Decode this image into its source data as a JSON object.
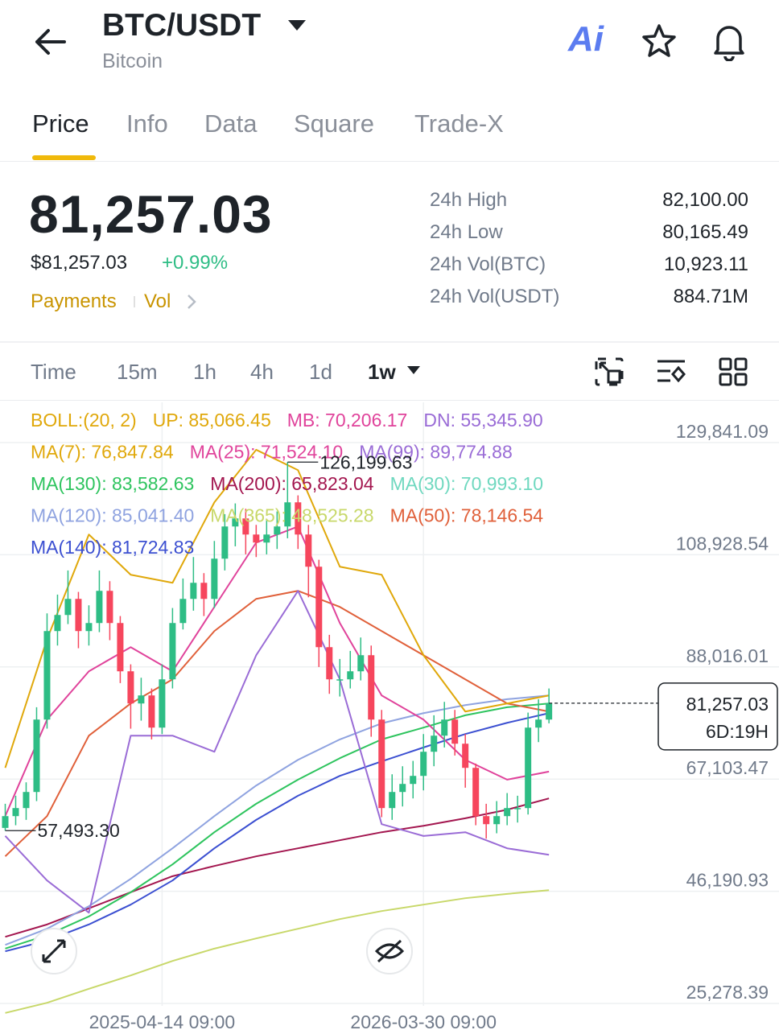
{
  "header": {
    "title": "BTC/USDT",
    "subtitle": "Bitcoin",
    "ai": "Ai"
  },
  "tabs": [
    "Price",
    "Info",
    "Data",
    "Square",
    "Trade-X"
  ],
  "price": {
    "last": "81,257.03",
    "usd": "$81,257.03",
    "change": "+0.99%",
    "links": [
      "Payments",
      "Vol"
    ]
  },
  "stats": [
    [
      "24h High",
      "82,100.00"
    ],
    [
      "24h Low",
      "80,165.49"
    ],
    [
      "24h Vol(BTC)",
      "10,923.11"
    ],
    [
      "24h Vol(USDT)",
      "884.71M"
    ]
  ],
  "timeframes": [
    "Time",
    "15m",
    "1h",
    "4h",
    "1d",
    "1w"
  ],
  "chart_data": {
    "type": "candlestick",
    "indicators": [
      [
        {
          "text": "BOLL:(20, 2)",
          "color": "#e0a80b"
        },
        {
          "text": "UP: 85,066.45",
          "color": "#e0a80b"
        },
        {
          "text": "MB: 70,206.17",
          "color": "#e0439b"
        },
        {
          "text": "DN: 55,345.90",
          "color": "#9a6cd6"
        }
      ],
      [
        {
          "text": "MA(7): 76,847.84",
          "color": "#e0a80b"
        },
        {
          "text": "MA(25): 71,524.10",
          "color": "#e0439b"
        },
        {
          "text": "MA(99): 89,774.88",
          "color": "#9a6cd6"
        }
      ],
      [
        {
          "text": "MA(130): 83,582.63",
          "color": "#2ec45e"
        },
        {
          "text": "MA(200): 65,823.04",
          "color": "#a3164f"
        },
        {
          "text": "MA(30): 70,993.10",
          "color": "#6fd8bf"
        }
      ],
      [
        {
          "text": "MA(120): 85,041.40",
          "color": "#8fa3e0"
        },
        {
          "text": "MA(365): 48,525.28",
          "color": "#c8d86a"
        },
        {
          "text": "MA(50): 78,146.54",
          "color": "#e0603a"
        }
      ],
      [
        {
          "text": "MA(140): 81,724.83",
          "color": "#3b4fd1"
        }
      ]
    ],
    "xlim": [
      -1,
      148
    ],
    "xticks": [
      {
        "value": 30,
        "label": "2025-04-14 09:00"
      },
      {
        "value": 80,
        "label": "2026-03-30 09:00"
      }
    ],
    "ylim": [
      24826,
      137342
    ],
    "yticks": [
      {
        "value": 129841.09,
        "label": "129,841.09"
      },
      {
        "value": 108928.54,
        "label": "108,928.54"
      },
      {
        "value": 88016.01,
        "label": "88,016.01"
      },
      {
        "value": 67103.47,
        "label": "67,103.47"
      },
      {
        "value": 46190.93,
        "label": "46,190.93"
      },
      {
        "value": 25278.39,
        "label": "25,278.39"
      }
    ],
    "grid": true,
    "up_color": "#2ebd85",
    "down_color": "#f6465d",
    "x": [
      0,
      2,
      4,
      6,
      8,
      10,
      12,
      14,
      16,
      18,
      20,
      22,
      24,
      26,
      28,
      30,
      32,
      34,
      36,
      38,
      40,
      42,
      44,
      46,
      48,
      50,
      52,
      54,
      56,
      58,
      60,
      62,
      64,
      66,
      68,
      70,
      72,
      74,
      76,
      78,
      80,
      82,
      84,
      86,
      88,
      90,
      92,
      94,
      96,
      98,
      100,
      102,
      104
    ],
    "open": [
      58000,
      60200,
      61700,
      64700,
      78200,
      94700,
      97700,
      100700,
      94700,
      96200,
      102200,
      96200,
      87200,
      81200,
      82700,
      76700,
      85700,
      96200,
      100700,
      103700,
      100700,
      108200,
      114200,
      115700,
      112700,
      111200,
      112700,
      114200,
      118700,
      112700,
      106700,
      91700,
      85700,
      85700,
      87200,
      90200,
      78200,
      61700,
      64700,
      66200,
      67700,
      72200,
      75200,
      78200,
      73700,
      69200,
      60200,
      58700,
      60200,
      61700,
      61700,
      76700,
      78200
    ],
    "high": [
      62500,
      64000,
      66500,
      80500,
      98000,
      101500,
      106000,
      102000,
      99500,
      106000,
      104000,
      97500,
      88500,
      86000,
      84000,
      88500,
      99000,
      104500,
      108500,
      105500,
      111500,
      116500,
      118500,
      117500,
      114500,
      115500,
      117000,
      126199.63,
      120000,
      114500,
      108000,
      94000,
      89500,
      91000,
      93500,
      92000,
      80000,
      68000,
      69500,
      70500,
      75500,
      79000,
      81500,
      80000,
      75500,
      70000,
      62500,
      63000,
      64500,
      64000,
      79500,
      82000,
      84000
    ],
    "low": [
      57493.3,
      58500,
      59500,
      63000,
      76500,
      92000,
      96000,
      91500,
      92000,
      94500,
      93000,
      85000,
      76500,
      78000,
      74500,
      75500,
      84000,
      95000,
      98500,
      97500,
      99000,
      106000,
      110500,
      109000,
      108500,
      109000,
      110000,
      112000,
      110000,
      101000,
      88000,
      83000,
      82500,
      84000,
      85500,
      75000,
      60000,
      59500,
      62000,
      63500,
      65000,
      69500,
      73000,
      71500,
      65500,
      58500,
      56000,
      57000,
      58500,
      59000,
      60500,
      74000,
      77500
    ],
    "close": [
      60200,
      61700,
      64700,
      78200,
      94700,
      97700,
      100700,
      94700,
      96200,
      102200,
      96200,
      87200,
      81200,
      82700,
      76700,
      85700,
      96200,
      100700,
      103700,
      100700,
      108200,
      114200,
      115700,
      112700,
      111200,
      112700,
      114200,
      118700,
      112700,
      106700,
      91700,
      85700,
      85700,
      87200,
      90200,
      78200,
      61700,
      64700,
      66200,
      67700,
      72200,
      75200,
      78200,
      73700,
      69200,
      60200,
      58700,
      60200,
      61700,
      61700,
      76700,
      78200,
      81257.03
    ],
    "line_x": [
      0,
      8,
      16,
      24,
      32,
      40,
      48,
      56,
      64,
      72,
      80,
      88,
      96,
      104
    ],
    "lines": [
      {
        "color": "#c8d86a",
        "values": [
          23500,
          25400,
          28000,
          30500,
          33200,
          35500,
          37400,
          39200,
          41000,
          42500,
          43700,
          44900,
          45700,
          46400
        ]
      },
      {
        "color": "#a3164f",
        "values": [
          37700,
          40000,
          43000,
          46000,
          49000,
          50900,
          52700,
          54200,
          55700,
          57200,
          58400,
          59800,
          61400,
          63500
        ]
      },
      {
        "color": "#8fa3e0",
        "values": [
          36200,
          39200,
          43400,
          48500,
          54200,
          60200,
          65900,
          70700,
          74500,
          77500,
          79400,
          80900,
          82000,
          82700
        ]
      },
      {
        "color": "#2ec45e",
        "values": [
          35500,
          38000,
          41500,
          46000,
          51200,
          57200,
          62500,
          67000,
          71000,
          74500,
          76700,
          79000,
          80500,
          81200
        ]
      },
      {
        "color": "#3b4fd1",
        "values": [
          35000,
          37000,
          40000,
          43700,
          48200,
          54200,
          59500,
          64000,
          67700,
          70400,
          73000,
          75500,
          77600,
          79400
        ]
      },
      {
        "color": "#e0603a",
        "values": [
          52700,
          60200,
          75200,
          81200,
          85700,
          94700,
          100700,
          102200,
          99200,
          94700,
          90200,
          85700,
          81200,
          79700
        ]
      },
      {
        "color": "#e0a80b",
        "values": [
          69200,
          93200,
          112700,
          105200,
          103700,
          118700,
          128500,
          124700,
          106700,
          105200,
          90200,
          79700,
          81200,
          82700
        ]
      },
      {
        "color": "#e0439b",
        "values": [
          60200,
          78200,
          87200,
          91700,
          87200,
          99200,
          111200,
          114200,
          96200,
          82700,
          78200,
          70700,
          67000,
          68500
        ]
      },
      {
        "color": "#9a6cd6",
        "values": [
          56500,
          48200,
          42200,
          75200,
          75200,
          72200,
          90200,
          102200,
          85700,
          58700,
          56500,
          57200,
          54200,
          53000
        ]
      }
    ],
    "annotations": [
      {
        "x": 54,
        "value": 126199.63,
        "label": "126,199.63"
      },
      {
        "x": 0,
        "value": 57493.3,
        "label": "57,493.30"
      }
    ],
    "price_tag": {
      "value": 81257.03,
      "label": "81,257.03",
      "countdown": "6D:19H"
    }
  }
}
